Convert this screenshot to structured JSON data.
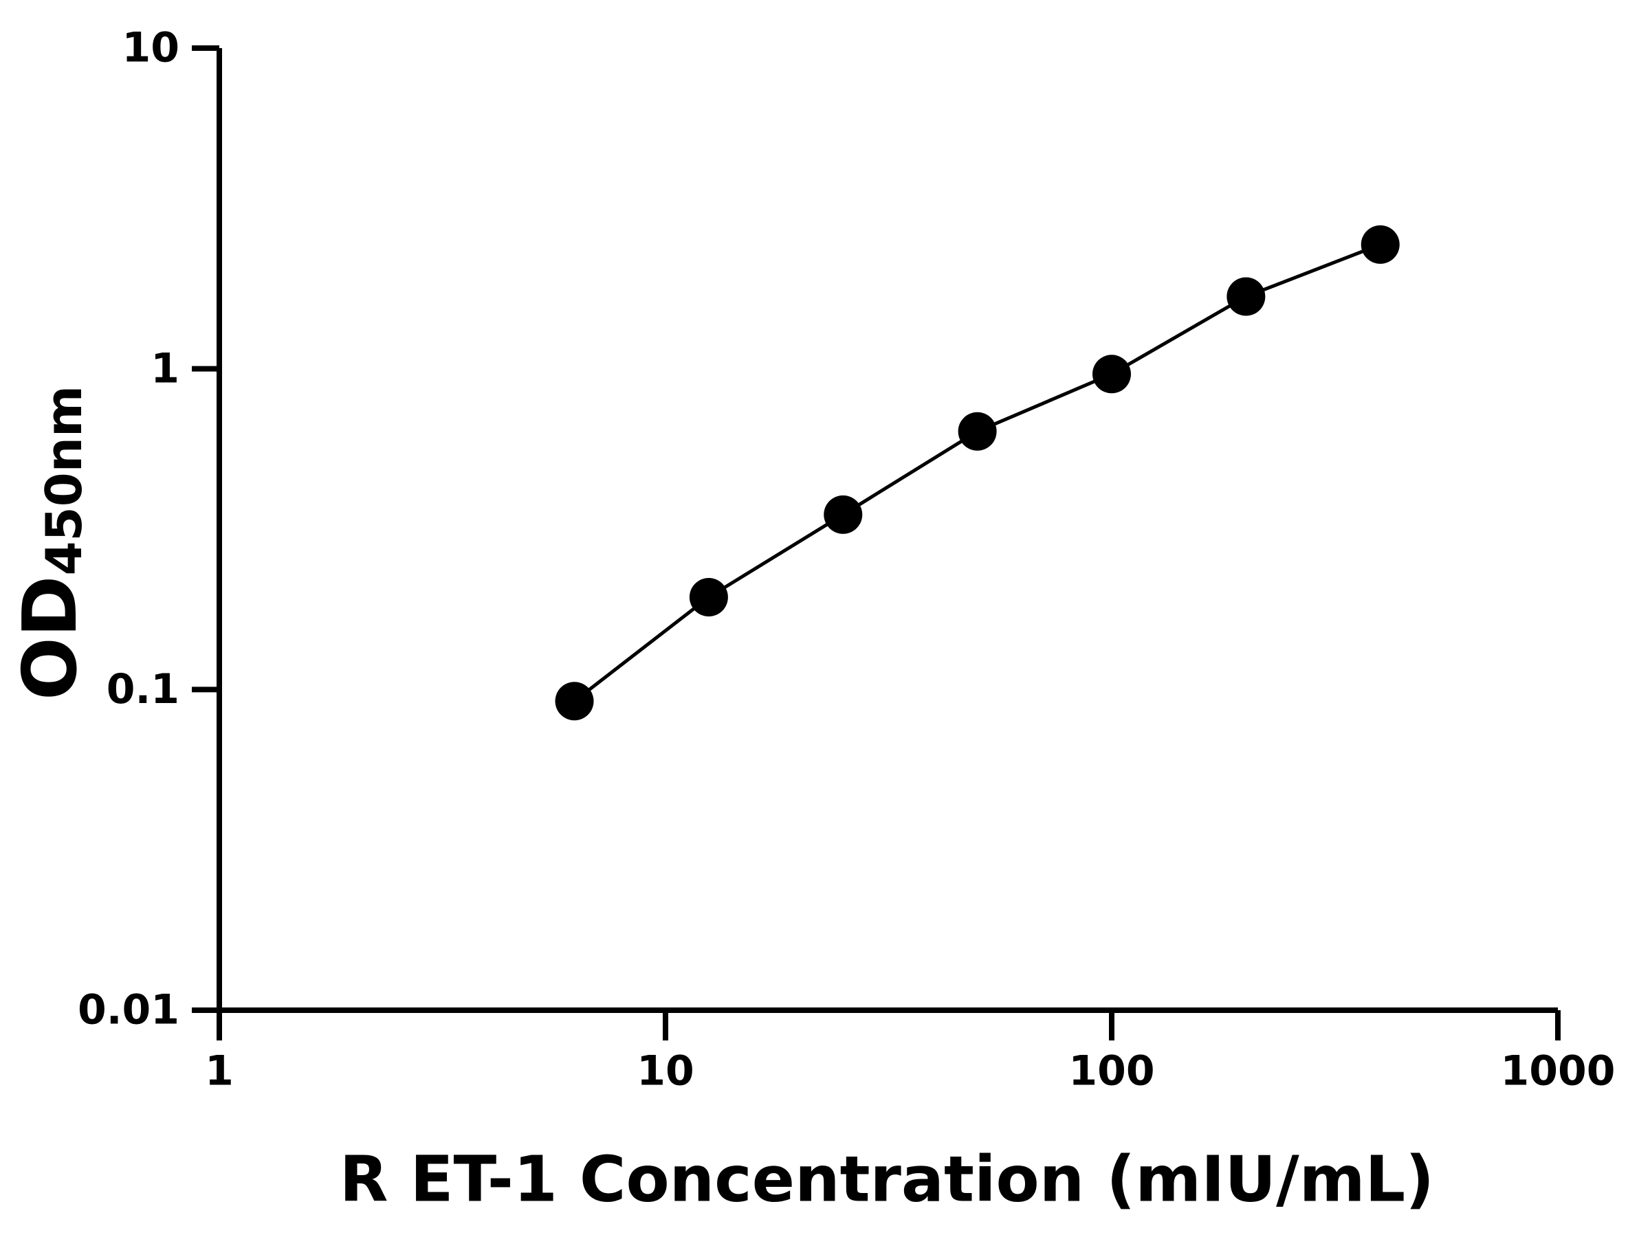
{
  "chart_data": {
    "type": "scatter",
    "xlabel": "R ET-1 Concentration (mIU/mL)",
    "ylabel": {
      "text": "OD",
      "subscript": "450nm"
    },
    "log_x": true,
    "log_y": true,
    "xlim": [
      1,
      1000
    ],
    "xticks": [
      1,
      10,
      100,
      1000
    ],
    "ylim": [
      0.01,
      10
    ],
    "yticks": [
      0.01,
      0.1,
      1,
      10
    ],
    "fit_line": true,
    "series": [
      {
        "color": "#000000",
        "x": [
          6.25,
          12.5,
          25,
          50,
          100,
          200,
          400
        ],
        "values": [
          0.092,
          0.194,
          0.351,
          0.638,
          0.963,
          1.68,
          2.44
        ]
      }
    ]
  }
}
